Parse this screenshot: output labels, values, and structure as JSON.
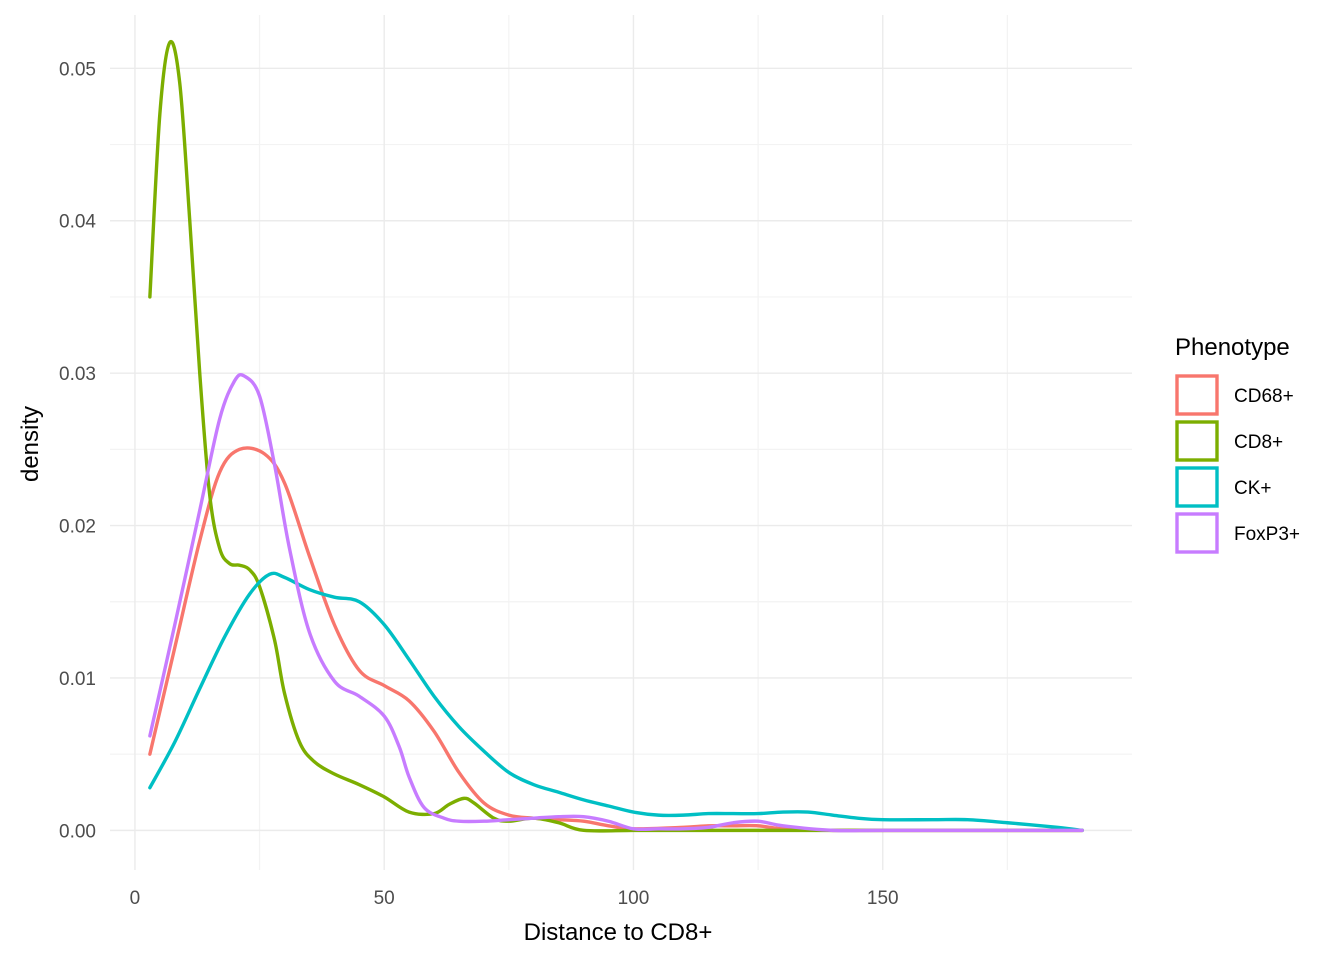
{
  "chart_data": {
    "type": "line",
    "title": "",
    "xlabel": "Distance to CD8+",
    "ylabel": "density",
    "xlim": [
      -5,
      200
    ],
    "ylim": [
      -0.0026,
      0.0535
    ],
    "x_ticks": [
      0,
      50,
      100,
      150
    ],
    "x_tick_labels": [
      "0",
      "50",
      "100",
      "150"
    ],
    "y_ticks": [
      0,
      0.01,
      0.02,
      0.03,
      0.04,
      0.05
    ],
    "y_tick_labels": [
      "0.00",
      "0.01",
      "0.02",
      "0.03",
      "0.04",
      "0.05"
    ],
    "grid": true,
    "legend": {
      "title": "Phenotype",
      "position": "right"
    },
    "series": [
      {
        "name": "CD68+",
        "color": "#F8766D",
        "x": [
          3,
          8,
          13,
          17,
          21,
          26,
          30,
          35,
          40,
          45,
          50,
          55,
          60,
          65,
          70,
          75,
          80,
          85,
          90,
          95,
          100,
          110,
          115,
          120,
          125,
          130,
          140,
          150,
          160,
          170,
          180,
          190
        ],
        "y": [
          0.005,
          0.012,
          0.019,
          0.0235,
          0.025,
          0.0247,
          0.0228,
          0.018,
          0.0135,
          0.0105,
          0.0095,
          0.0085,
          0.0065,
          0.0038,
          0.0018,
          0.001,
          0.0008,
          0.0007,
          0.0006,
          0.0003,
          0.0001,
          0.0002,
          0.0003,
          0.0003,
          0.0003,
          0.0001,
          0.0,
          0.0,
          0.0,
          0.0,
          0.0,
          0.0
        ]
      },
      {
        "name": "CD8+",
        "color": "#7CAE00",
        "x": [
          3,
          5,
          7,
          9,
          11,
          13,
          15,
          17,
          19,
          21,
          23,
          25,
          28,
          30,
          33,
          36,
          40,
          45,
          50,
          55,
          60,
          63,
          66,
          68,
          72,
          75,
          80,
          85,
          90,
          100,
          110,
          120,
          130,
          150,
          170,
          190
        ],
        "y": [
          0.035,
          0.047,
          0.0517,
          0.049,
          0.04,
          0.03,
          0.022,
          0.0185,
          0.0175,
          0.0174,
          0.0171,
          0.016,
          0.0125,
          0.009,
          0.0058,
          0.0045,
          0.0037,
          0.003,
          0.0022,
          0.0012,
          0.0011,
          0.0017,
          0.0021,
          0.0018,
          0.0008,
          0.0006,
          0.0008,
          0.0005,
          0.0,
          0.0,
          0.0,
          0.0,
          0.0,
          0.0,
          0.0,
          0.0
        ]
      },
      {
        "name": "CK+",
        "color": "#00BFC4",
        "x": [
          3,
          8,
          13,
          18,
          23,
          27,
          30,
          35,
          40,
          45,
          50,
          55,
          60,
          65,
          70,
          75,
          80,
          85,
          90,
          95,
          100,
          105,
          110,
          115,
          120,
          125,
          130,
          135,
          140,
          145,
          150,
          160,
          167,
          175,
          185,
          190
        ],
        "y": [
          0.0028,
          0.0058,
          0.0093,
          0.0127,
          0.0155,
          0.0168,
          0.0166,
          0.0158,
          0.0153,
          0.015,
          0.0135,
          0.0112,
          0.0088,
          0.0068,
          0.0052,
          0.0038,
          0.003,
          0.0025,
          0.002,
          0.0016,
          0.0012,
          0.001,
          0.001,
          0.0011,
          0.0011,
          0.0011,
          0.0012,
          0.0012,
          0.001,
          0.0008,
          0.0007,
          0.0007,
          0.0007,
          0.0005,
          0.0002,
          0.0
        ]
      },
      {
        "name": "FoxP3+",
        "color": "#C77CFF",
        "x": [
          3,
          8,
          13,
          17,
          20,
          22,
          25,
          28,
          31,
          35,
          40,
          45,
          50,
          53,
          55,
          58,
          62,
          65,
          70,
          75,
          80,
          85,
          90,
          95,
          100,
          105,
          110,
          115,
          120,
          125,
          130,
          140,
          150,
          170,
          190
        ],
        "y": [
          0.0062,
          0.0135,
          0.021,
          0.027,
          0.0295,
          0.0298,
          0.0285,
          0.024,
          0.0185,
          0.013,
          0.0098,
          0.0088,
          0.0075,
          0.0055,
          0.0035,
          0.0015,
          0.0008,
          0.0006,
          0.0006,
          0.0007,
          0.0008,
          0.0009,
          0.0009,
          0.0006,
          0.0001,
          0.0001,
          0.0001,
          0.0002,
          0.0005,
          0.0006,
          0.0003,
          0.0,
          0.0,
          0.0,
          0.0
        ]
      }
    ]
  }
}
